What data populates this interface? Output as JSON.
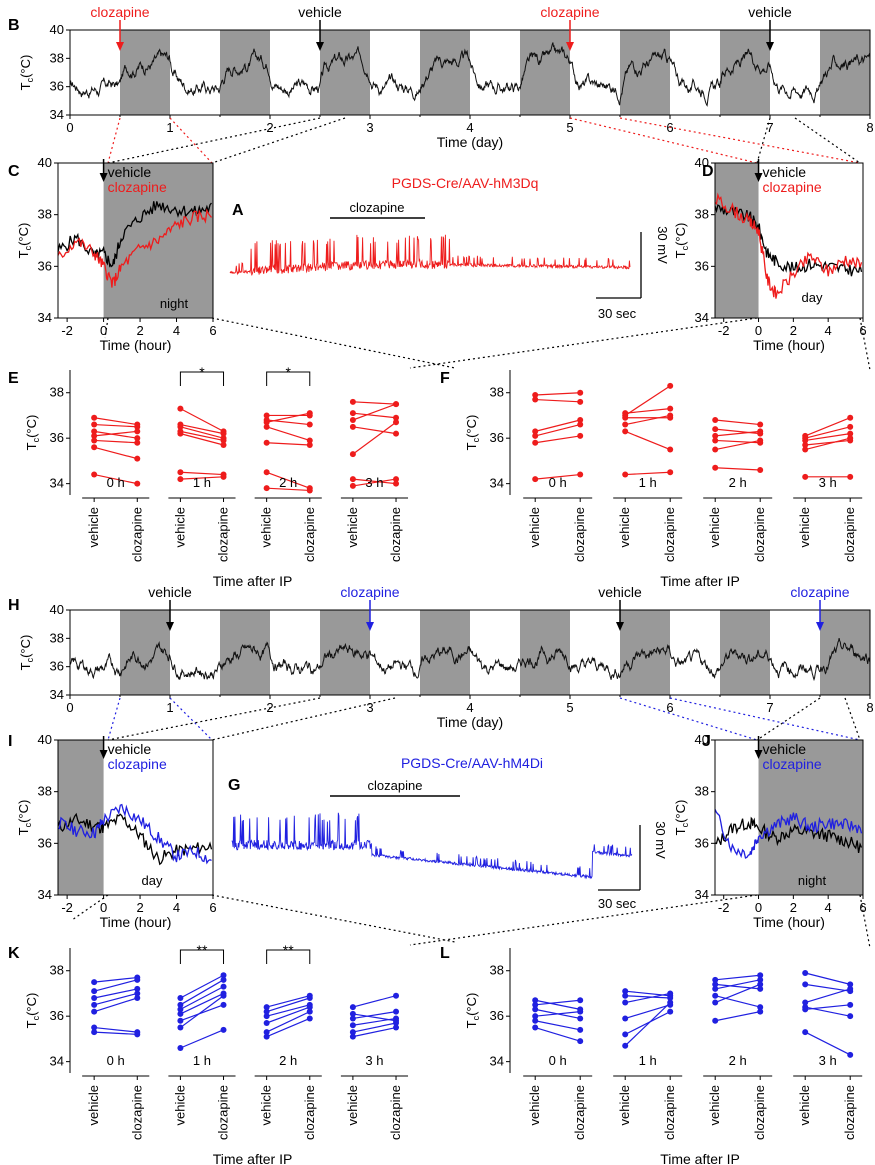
{
  "figure": {
    "panel_labels": [
      "A",
      "B",
      "C",
      "D",
      "E",
      "F",
      "G",
      "H",
      "I",
      "J",
      "K",
      "L"
    ],
    "colors": {
      "excitatory": "#ee1c1c",
      "inhibitory": "#2020e0",
      "vehicle": "#000000",
      "night_shading": "#999999"
    },
    "common": {
      "ylabel": "Tc(°C)",
      "ylabel_main": "T",
      "ylabel_sub": "c",
      "ylabel_unit": "(°C)",
      "time_day": "Time (day)",
      "time_hour": "Time (hour)",
      "time_after_ip": "Time after IP",
      "vehicle": "vehicle",
      "clozapine": "clozapine",
      "night": "night",
      "day": "day",
      "scale_mv": "30 mV",
      "scale_sec": "30 sec",
      "hours": [
        "0 h",
        "1 h",
        "2 h",
        "3 h"
      ],
      "sig_single": "*",
      "sig_double": "**"
    },
    "headers": {
      "A": "PGDS-Cre/AAV-hM3Dq",
      "G": "PGDS-Cre/AAV-hM4Di",
      "A_bar": "clozapine",
      "G_bar": "clozapine"
    }
  },
  "chart_data": [
    {
      "panel": "B",
      "type": "line",
      "xlabel": "Time (day)",
      "ylabel": "Tc(°C)",
      "xlim": [
        0,
        8
      ],
      "ylim": [
        34,
        40
      ],
      "x_ticks": [
        0,
        1,
        2,
        3,
        4,
        5,
        6,
        7,
        8
      ],
      "y_ticks": [
        34,
        36,
        38,
        40
      ],
      "night_periods": [
        [
          0.5,
          1
        ],
        [
          1.5,
          2
        ],
        [
          2.5,
          3
        ],
        [
          3.5,
          4
        ],
        [
          4.5,
          5
        ],
        [
          5.5,
          6
        ],
        [
          6.5,
          7
        ],
        [
          7.5,
          8
        ]
      ],
      "injections": [
        {
          "label": "clozapine",
          "day": 0.5,
          "color": "red"
        },
        {
          "label": "vehicle",
          "day": 2.5,
          "color": "black"
        },
        {
          "label": "clozapine",
          "day": 5.0,
          "color": "red"
        },
        {
          "label": "vehicle",
          "day": 7.0,
          "color": "black"
        }
      ],
      "day_level": 36.0,
      "night_level": 37.8
    },
    {
      "panel": "H",
      "type": "line",
      "xlabel": "Time (day)",
      "ylabel": "Tc(°C)",
      "xlim": [
        0,
        8
      ],
      "ylim": [
        34,
        40
      ],
      "x_ticks": [
        0,
        1,
        2,
        3,
        4,
        5,
        6,
        7,
        8
      ],
      "y_ticks": [
        34,
        36,
        38,
        40
      ],
      "night_periods": [
        [
          0.5,
          1
        ],
        [
          1.5,
          2
        ],
        [
          2.5,
          3
        ],
        [
          3.5,
          4
        ],
        [
          4.5,
          5
        ],
        [
          5.5,
          6
        ],
        [
          6.5,
          7
        ],
        [
          7.5,
          8
        ]
      ],
      "injections": [
        {
          "label": "vehicle",
          "day": 1.0,
          "color": "black"
        },
        {
          "label": "clozapine",
          "day": 3.0,
          "color": "blue"
        },
        {
          "label": "vehicle",
          "day": 5.5,
          "color": "black"
        },
        {
          "label": "clozapine",
          "day": 7.5,
          "color": "blue"
        }
      ],
      "day_level": 35.9,
      "night_level": 36.9
    },
    {
      "panel": "C",
      "type": "line",
      "xlabel": "Time (hour)",
      "ylabel": "Tc(°C)",
      "xlim": [
        -2.5,
        6
      ],
      "ylim": [
        34,
        40
      ],
      "x_ticks": [
        -2,
        0,
        2,
        4,
        6
      ],
      "y_ticks": [
        34,
        36,
        38,
        40
      ],
      "shaded": [
        0,
        6
      ],
      "shade_label": "night",
      "series": [
        {
          "name": "vehicle",
          "color": "black",
          "x": [
            -2.5,
            -1.5,
            -0.5,
            0,
            0.5,
            1,
            2,
            3,
            4,
            5,
            6
          ],
          "y": [
            36.6,
            37.1,
            36.4,
            36.5,
            36.0,
            37.2,
            37.9,
            38.4,
            38.2,
            38.1,
            38.3
          ]
        },
        {
          "name": "clozapine",
          "color": "red",
          "x": [
            -2.5,
            -1.5,
            -0.5,
            0,
            0.5,
            1,
            2,
            3,
            4,
            5,
            6
          ],
          "y": [
            36.3,
            37.0,
            36.5,
            36.0,
            35.3,
            36.0,
            36.7,
            37.0,
            37.6,
            37.9,
            38.0
          ]
        }
      ]
    },
    {
      "panel": "D",
      "type": "line",
      "xlabel": "Time (hour)",
      "ylabel": "Tc(°C)",
      "xlim": [
        -2.5,
        6
      ],
      "ylim": [
        34,
        40
      ],
      "x_ticks": [
        -2,
        0,
        2,
        4,
        6
      ],
      "y_ticks": [
        34,
        36,
        38,
        40
      ],
      "shaded": [
        -2.5,
        0
      ],
      "shade_label": "day",
      "series": [
        {
          "name": "vehicle",
          "color": "black",
          "x": [
            -2.5,
            -1.5,
            -0.5,
            0,
            0.5,
            1,
            2,
            3,
            4,
            5,
            6
          ],
          "y": [
            38.3,
            38.1,
            37.9,
            37.5,
            36.5,
            36.2,
            35.9,
            36.1,
            36.0,
            35.9,
            35.8
          ]
        },
        {
          "name": "clozapine",
          "color": "red",
          "x": [
            -2.5,
            -1.5,
            -0.5,
            0,
            0.5,
            1,
            2,
            3,
            4,
            5,
            6
          ],
          "y": [
            38.6,
            38.2,
            37.7,
            37.4,
            35.5,
            34.9,
            35.7,
            36.4,
            35.8,
            36.3,
            36.0
          ]
        }
      ]
    },
    {
      "panel": "I",
      "type": "line",
      "xlabel": "Time (hour)",
      "ylabel": "Tc(°C)",
      "xlim": [
        -2.5,
        6
      ],
      "ylim": [
        34,
        40
      ],
      "x_ticks": [
        -2,
        0,
        2,
        4,
        6
      ],
      "y_ticks": [
        34,
        36,
        38,
        40
      ],
      "shaded": [
        -2.5,
        0
      ],
      "shade_label": "day",
      "series": [
        {
          "name": "vehicle",
          "color": "black",
          "x": [
            -2.5,
            -1.5,
            -0.5,
            0,
            1,
            2,
            3,
            4,
            5,
            6
          ],
          "y": [
            36.6,
            36.9,
            36.7,
            36.6,
            37.0,
            36.3,
            35.4,
            35.7,
            35.8,
            35.9
          ]
        },
        {
          "name": "clozapine",
          "color": "blue",
          "x": [
            -2.5,
            -1.5,
            -0.5,
            0,
            1,
            2,
            3,
            4,
            5,
            6
          ],
          "y": [
            36.8,
            36.5,
            36.4,
            36.9,
            37.4,
            36.9,
            36.2,
            35.5,
            35.7,
            35.3
          ]
        }
      ]
    },
    {
      "panel": "J",
      "type": "line",
      "xlabel": "Time (hour)",
      "ylabel": "Tc(°C)",
      "xlim": [
        -2.5,
        6
      ],
      "ylim": [
        34,
        40
      ],
      "x_ticks": [
        -2,
        0,
        2,
        4,
        6
      ],
      "y_ticks": [
        34,
        36,
        38,
        40
      ],
      "shaded": [
        0,
        6
      ],
      "shade_label": "night",
      "series": [
        {
          "name": "vehicle",
          "color": "black",
          "x": [
            -2.5,
            -1.5,
            -0.5,
            0,
            1,
            2,
            3,
            4,
            5,
            6
          ],
          "y": [
            35.9,
            36.6,
            36.8,
            36.6,
            36.2,
            36.5,
            36.4,
            36.3,
            36.1,
            35.8
          ]
        },
        {
          "name": "clozapine",
          "color": "blue",
          "x": [
            -2.5,
            -1.5,
            -0.5,
            0,
            1,
            2,
            3,
            4,
            5,
            6
          ],
          "y": [
            37.2,
            35.8,
            35.6,
            36.3,
            36.7,
            37.0,
            36.6,
            36.8,
            36.7,
            36.6
          ]
        }
      ]
    },
    {
      "panel": "E",
      "type": "scatter",
      "xlabel": "Time after IP",
      "ylabel": "Tc(°C)",
      "ylim": [
        33.5,
        39
      ],
      "y_ticks": [
        34,
        36,
        38
      ],
      "color": "red",
      "categories": [
        "0 h",
        "1 h",
        "2 h",
        "3 h"
      ],
      "pairs": [
        [
          [
            36.9,
            36.6
          ],
          [
            36.6,
            36.5
          ],
          [
            36.3,
            36.0
          ],
          [
            36.1,
            36.3
          ],
          [
            35.9,
            35.8
          ],
          [
            35.6,
            35.1
          ],
          [
            34.4,
            34.0
          ]
        ],
        [
          [
            37.3,
            36.3
          ],
          [
            36.6,
            36.2
          ],
          [
            36.5,
            36.0
          ],
          [
            36.3,
            35.9
          ],
          [
            36.2,
            35.7
          ],
          [
            34.5,
            34.4
          ],
          [
            34.2,
            34.3
          ]
        ],
        [
          [
            37.0,
            37.0
          ],
          [
            36.8,
            36.6
          ],
          [
            36.7,
            37.1
          ],
          [
            36.5,
            35.9
          ],
          [
            35.8,
            35.7
          ],
          [
            34.5,
            33.8
          ],
          [
            33.8,
            33.7
          ]
        ],
        [
          [
            37.6,
            37.5
          ],
          [
            37.1,
            36.9
          ],
          [
            36.8,
            37.5
          ],
          [
            36.5,
            36.2
          ],
          [
            35.3,
            36.7
          ],
          [
            34.2,
            34.0
          ],
          [
            33.9,
            34.2
          ]
        ]
      ],
      "significance": [
        {
          "category": "1 h",
          "label": "*"
        },
        {
          "category": "2 h",
          "label": "*"
        }
      ]
    },
    {
      "panel": "F",
      "type": "scatter",
      "xlabel": "Time after IP",
      "ylabel": "Tc(°C)",
      "ylim": [
        33.5,
        39
      ],
      "y_ticks": [
        34,
        36,
        38
      ],
      "color": "red",
      "categories": [
        "0 h",
        "1 h",
        "2 h",
        "3 h"
      ],
      "pairs": [
        [
          [
            37.9,
            38.0
          ],
          [
            37.7,
            37.6
          ],
          [
            36.3,
            36.8
          ],
          [
            36.1,
            36.6
          ],
          [
            35.8,
            36.1
          ],
          [
            34.2,
            34.4
          ]
        ],
        [
          [
            37.1,
            37.3
          ],
          [
            37.0,
            38.3
          ],
          [
            36.9,
            36.9
          ],
          [
            36.6,
            37.0
          ],
          [
            36.3,
            35.5
          ],
          [
            34.4,
            34.5
          ]
        ],
        [
          [
            36.8,
            36.6
          ],
          [
            36.4,
            36.2
          ],
          [
            36.1,
            36.3
          ],
          [
            35.9,
            35.8
          ],
          [
            35.5,
            35.9
          ],
          [
            34.7,
            34.6
          ]
        ],
        [
          [
            36.1,
            36.9
          ],
          [
            36.0,
            36.5
          ],
          [
            35.9,
            36.2
          ],
          [
            35.7,
            35.9
          ],
          [
            35.5,
            36.0
          ],
          [
            34.3,
            34.3
          ]
        ]
      ]
    },
    {
      "panel": "K",
      "type": "scatter",
      "xlabel": "Time after IP",
      "ylabel": "Tc(°C)",
      "ylim": [
        33.5,
        39
      ],
      "y_ticks": [
        34,
        36,
        38
      ],
      "color": "blue",
      "categories": [
        "0 h",
        "1 h",
        "2 h",
        "3 h"
      ],
      "pairs": [
        [
          [
            37.5,
            37.7
          ],
          [
            37.1,
            37.6
          ],
          [
            36.8,
            37.2
          ],
          [
            36.5,
            37.0
          ],
          [
            36.2,
            36.8
          ],
          [
            35.5,
            35.3
          ],
          [
            35.3,
            35.2
          ]
        ],
        [
          [
            36.8,
            37.8
          ],
          [
            36.5,
            37.6
          ],
          [
            36.3,
            37.3
          ],
          [
            36.1,
            37.0
          ],
          [
            35.8,
            36.5
          ],
          [
            35.5,
            36.9
          ],
          [
            34.6,
            35.4
          ]
        ],
        [
          [
            36.4,
            36.9
          ],
          [
            36.2,
            36.8
          ],
          [
            36.0,
            36.5
          ],
          [
            35.7,
            36.4
          ],
          [
            35.3,
            36.2
          ],
          [
            35.1,
            35.9
          ]
        ],
        [
          [
            36.4,
            36.9
          ],
          [
            36.1,
            35.8
          ],
          [
            35.9,
            36.2
          ],
          [
            35.6,
            35.9
          ],
          [
            35.3,
            35.7
          ],
          [
            35.1,
            35.5
          ]
        ]
      ],
      "significance": [
        {
          "category": "1 h",
          "label": "**"
        },
        {
          "category": "2 h",
          "label": "**"
        }
      ]
    },
    {
      "panel": "L",
      "type": "scatter",
      "xlabel": "Time after IP",
      "ylabel": "Tc(°C)",
      "ylim": [
        33.5,
        39
      ],
      "y_ticks": [
        34,
        36,
        38
      ],
      "color": "blue",
      "categories": [
        "0 h",
        "1 h",
        "2 h",
        "3 h"
      ],
      "pairs": [
        [
          [
            36.7,
            36.3
          ],
          [
            36.5,
            36.7
          ],
          [
            36.3,
            35.9
          ],
          [
            36.0,
            36.2
          ],
          [
            35.8,
            35.4
          ],
          [
            35.5,
            34.9
          ]
        ],
        [
          [
            37.1,
            36.9
          ],
          [
            36.9,
            36.8
          ],
          [
            36.6,
            37.0
          ],
          [
            35.9,
            36.5
          ],
          [
            35.2,
            36.2
          ],
          [
            34.7,
            36.6
          ]
        ],
        [
          [
            37.6,
            37.8
          ],
          [
            37.4,
            37.2
          ],
          [
            37.2,
            37.6
          ],
          [
            36.9,
            36.4
          ],
          [
            36.6,
            37.4
          ],
          [
            35.8,
            36.2
          ]
        ],
        [
          [
            37.9,
            37.4
          ],
          [
            37.4,
            37.1
          ],
          [
            36.6,
            37.2
          ],
          [
            36.4,
            36.0
          ],
          [
            36.3,
            36.5
          ],
          [
            35.3,
            34.3
          ]
        ]
      ]
    },
    {
      "panel": "A",
      "type": "line",
      "title": "PGDS-Cre/AAV-hM3Dq",
      "bar_label": "clozapine",
      "scale": {
        "voltage": "30 mV",
        "time": "30 sec"
      }
    },
    {
      "panel": "G",
      "type": "line",
      "title": "PGDS-Cre/AAV-hM4Di",
      "bar_label": "clozapine",
      "scale": {
        "voltage": "30 mV",
        "time": "30 sec"
      }
    }
  ]
}
